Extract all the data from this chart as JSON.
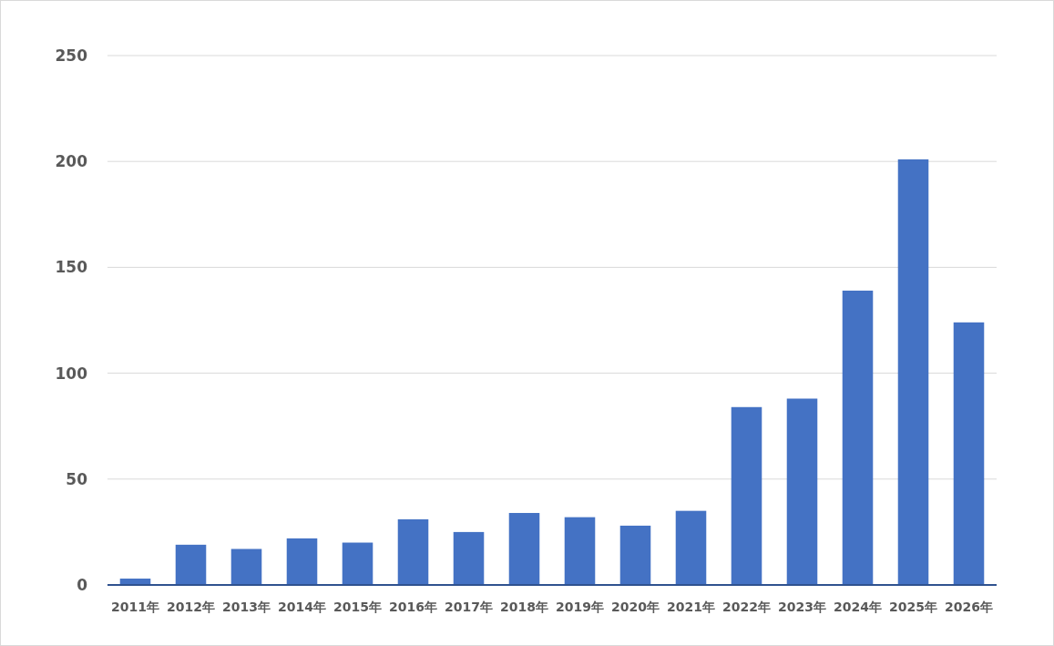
{
  "chart_data": {
    "type": "bar",
    "categories": [
      "2011年",
      "2012年",
      "2013年",
      "2014年",
      "2015年",
      "2016年",
      "2017年",
      "2018年",
      "2019年",
      "2020年",
      "2021年",
      "2022年",
      "2023年",
      "2024年",
      "2025年",
      "2026年"
    ],
    "values": [
      3,
      19,
      17,
      22,
      20,
      31,
      25,
      34,
      32,
      28,
      35,
      84,
      88,
      139,
      201,
      124
    ],
    "color": "#4472c4",
    "ylim": [
      0,
      250
    ],
    "yticks": [
      0,
      50,
      100,
      150,
      200,
      250
    ],
    "grid": "y"
  }
}
